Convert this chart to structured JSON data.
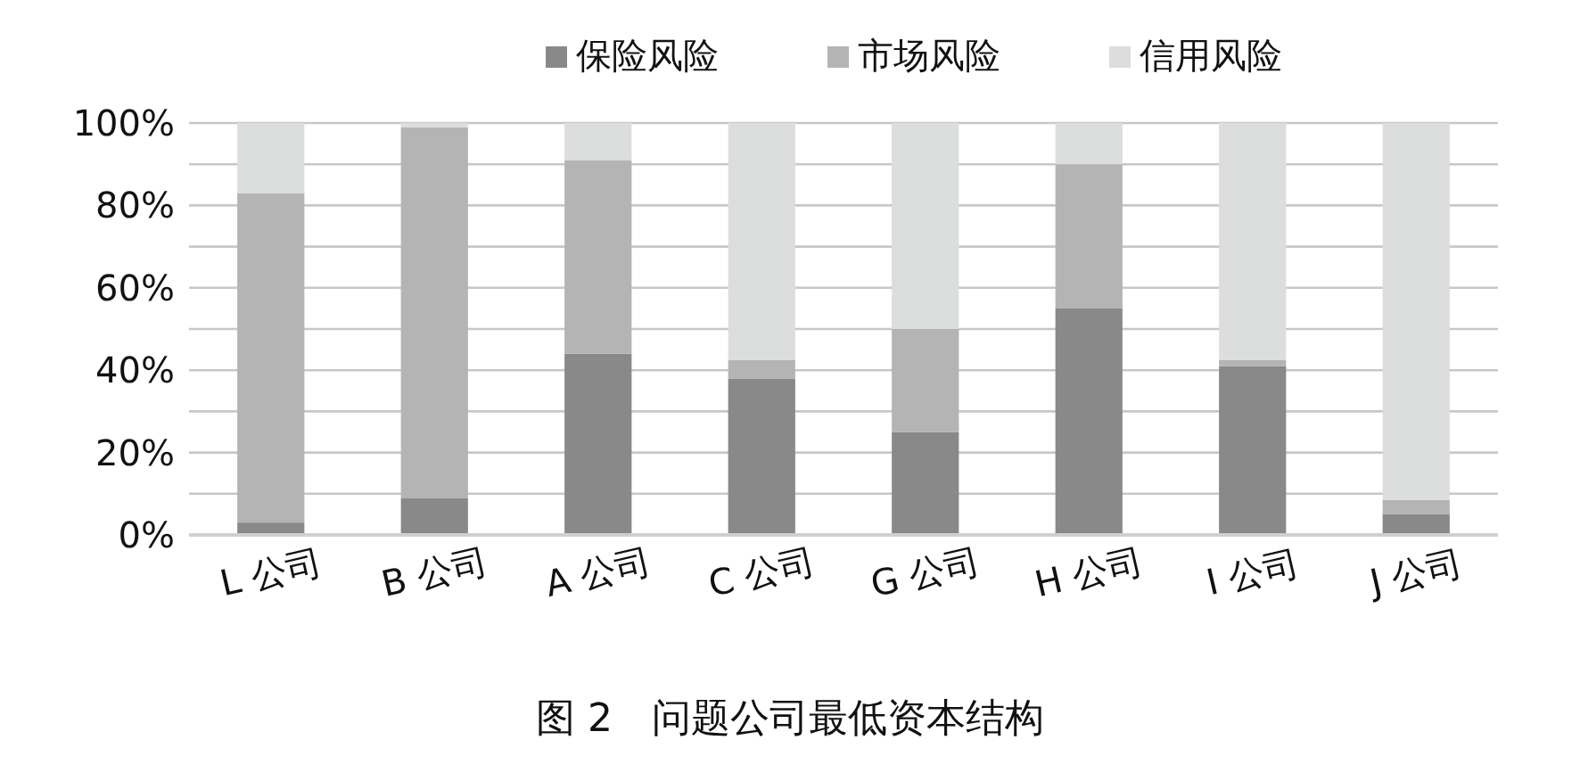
{
  "chart_data": {
    "type": "bar",
    "stacked": true,
    "categories": [
      "L 公司",
      "B 公司",
      "A 公司",
      "C 公司",
      "G 公司",
      "H 公司",
      "I 公司",
      "J 公司"
    ],
    "series": [
      {
        "name": "保险风险",
        "color": "#898989",
        "values": [
          3,
          9,
          44,
          38,
          25,
          55,
          41,
          5
        ]
      },
      {
        "name": "市场风险",
        "color": "#b4b4b4",
        "values": [
          80,
          90,
          47,
          4.5,
          25,
          35,
          1.5,
          3.5
        ]
      },
      {
        "name": "信用风险",
        "color": "#dcdddd",
        "values": [
          17,
          1,
          9,
          57.5,
          50,
          10,
          57.5,
          91.5
        ]
      }
    ],
    "ylim": [
      0,
      100
    ],
    "yticks": [
      {
        "value": 0,
        "label": "0%"
      },
      {
        "value": 10,
        "label": null
      },
      {
        "value": 20,
        "label": "20%"
      },
      {
        "value": 30,
        "label": null
      },
      {
        "value": 40,
        "label": "40%"
      },
      {
        "value": 50,
        "label": null
      },
      {
        "value": 60,
        "label": "60%"
      },
      {
        "value": 70,
        "label": null
      },
      {
        "value": 80,
        "label": "80%"
      },
      {
        "value": 90,
        "label": null
      },
      {
        "value": 100,
        "label": "100%"
      }
    ],
    "grid": "y",
    "legend": "top",
    "annotations": [
      "图 2　问题公司最低资本结构"
    ]
  }
}
